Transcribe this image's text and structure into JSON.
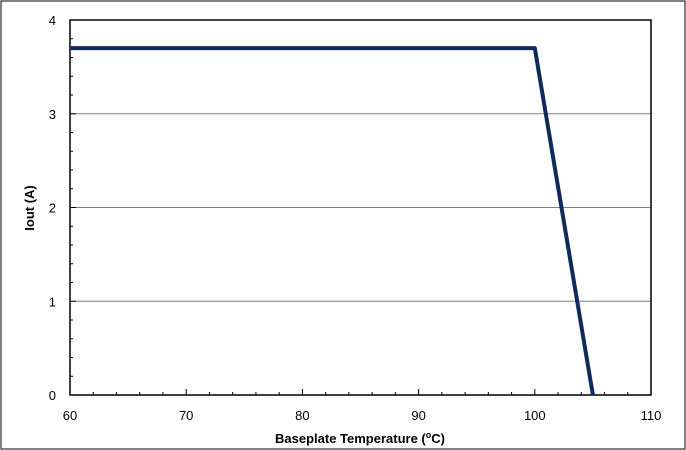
{
  "chart_data": {
    "type": "line",
    "title": "",
    "xlabel": "Baseplate Temperature (",
    "xlabel_sup": "o",
    "xlabel_tail": "C)",
    "ylabel": "Iout (A)",
    "xlim": [
      60,
      110
    ],
    "ylim": [
      0,
      4
    ],
    "xticks": [
      60,
      70,
      80,
      90,
      100,
      110
    ],
    "yticks": [
      0,
      1,
      2,
      3,
      4
    ],
    "x_minor_step": 2,
    "y_minor_step": 0.2,
    "grid": "horizontal major",
    "legend": "none",
    "series": [
      {
        "x": [
          60,
          100,
          105
        ],
        "y": [
          3.7,
          3.7,
          0
        ]
      }
    ],
    "colors": {
      "line": "#0f2a5c",
      "grid": "#808080",
      "axes": "#000000"
    }
  }
}
